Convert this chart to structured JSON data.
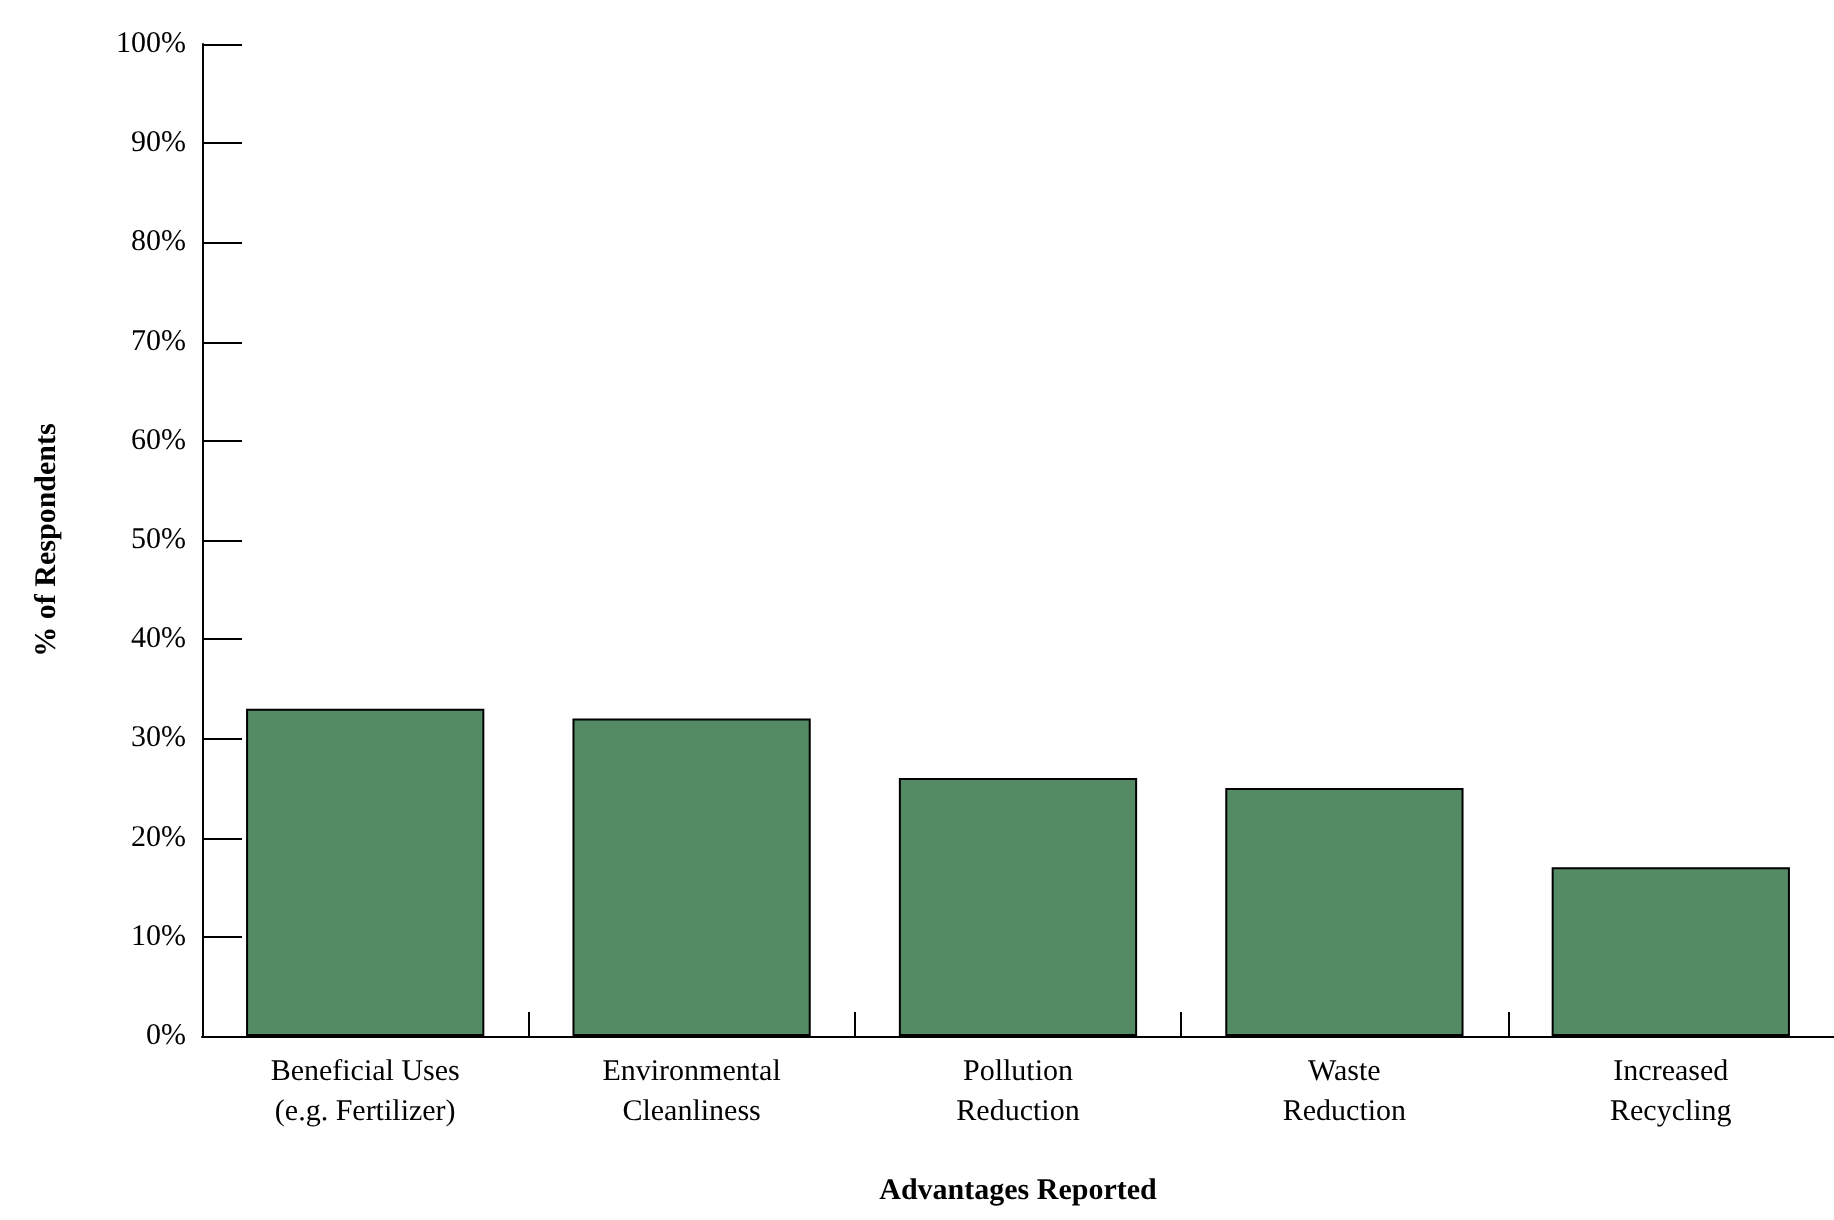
{
  "chart_data": {
    "type": "bar",
    "xlabel": "Advantages Reported",
    "ylabel": "% of Respondents",
    "categories": [
      "Beneficial Uses\n(e.g. Fertilizer)",
      "Environmental\nCleanliness",
      "Pollution\nReduction",
      "Waste\nReduction",
      "Increased\nRecycling"
    ],
    "values": [
      33,
      32,
      26,
      25,
      17
    ],
    "color": "#548b64",
    "ylim": [
      0,
      100
    ],
    "yticks": [
      {
        "value": 0,
        "label": "0%"
      },
      {
        "value": 10,
        "label": "10%"
      },
      {
        "value": 20,
        "label": "20%"
      },
      {
        "value": 30,
        "label": "30%"
      },
      {
        "value": 40,
        "label": "40%"
      },
      {
        "value": 50,
        "label": "50%"
      },
      {
        "value": 60,
        "label": "60%"
      },
      {
        "value": 70,
        "label": "70%"
      },
      {
        "value": 80,
        "label": "80%"
      },
      {
        "value": 90,
        "label": "90%"
      },
      {
        "value": 100,
        "label": "100%"
      }
    ],
    "grid": false
  }
}
